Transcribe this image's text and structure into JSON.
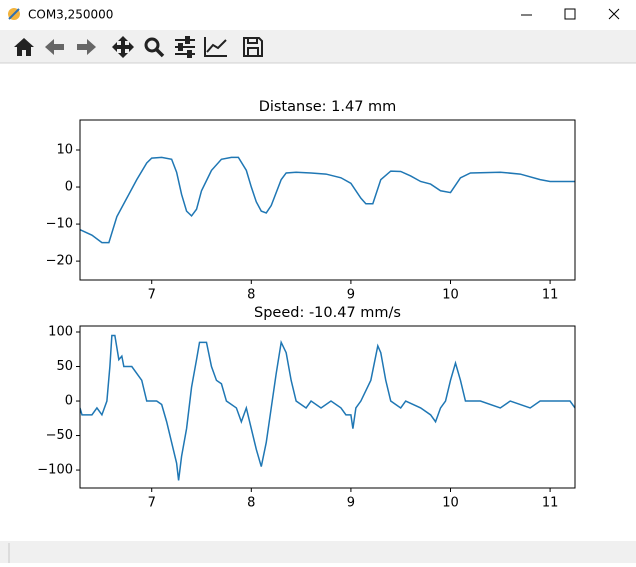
{
  "window": {
    "title": "COM3,250000"
  },
  "chart_data": [
    {
      "type": "line",
      "title": "Distanse: 1.47 mm",
      "color": "#1f77b4",
      "x": [
        6.28,
        6.4,
        6.5,
        6.57,
        6.65,
        6.75,
        6.85,
        6.95,
        7.0,
        7.1,
        7.2,
        7.25,
        7.3,
        7.35,
        7.4,
        7.45,
        7.5,
        7.6,
        7.7,
        7.8,
        7.87,
        7.95,
        8.0,
        8.05,
        8.1,
        8.15,
        8.2,
        8.3,
        8.35,
        8.45,
        8.6,
        8.75,
        8.9,
        9.0,
        9.1,
        9.15,
        9.22,
        9.3,
        9.4,
        9.5,
        9.6,
        9.7,
        9.8,
        9.9,
        10.0,
        10.05,
        10.1,
        10.2,
        10.5,
        10.7,
        10.9,
        11.0,
        11.25
      ],
      "values": [
        -11.5,
        -13,
        -15,
        -15,
        -8,
        -3,
        2,
        6.5,
        7.8,
        8,
        7.5,
        4,
        -2,
        -6.5,
        -7.8,
        -6,
        -1,
        4.5,
        7.5,
        8,
        8,
        4.5,
        0,
        -4,
        -6.5,
        -7,
        -5,
        2,
        3.8,
        4,
        3.8,
        3.5,
        2.5,
        1,
        -3,
        -4.5,
        -4.5,
        2,
        4.3,
        4.2,
        3,
        1.5,
        0.8,
        -1,
        -1.5,
        0.5,
        2.5,
        3.8,
        4,
        3.5,
        2,
        1.5,
        1.5
      ],
      "xlim": [
        6.28,
        11.25
      ],
      "ylim": [
        -25.1,
        18.1
      ],
      "xticks": [
        7,
        8,
        9,
        10,
        11
      ],
      "yticks": [
        {
          "value": -20,
          "label": "−20"
        },
        {
          "value": -10,
          "label": "−10"
        },
        0,
        10
      ]
    },
    {
      "type": "line",
      "title": "Speed: -10.47 mm/s",
      "color": "#1f77b4",
      "x": [
        6.28,
        6.3,
        6.4,
        6.45,
        6.5,
        6.55,
        6.58,
        6.6,
        6.63,
        6.67,
        6.7,
        6.72,
        6.8,
        6.9,
        6.95,
        7.05,
        7.1,
        7.15,
        7.2,
        7.25,
        7.27,
        7.3,
        7.35,
        7.4,
        7.45,
        7.48,
        7.55,
        7.6,
        7.65,
        7.7,
        7.75,
        7.85,
        7.9,
        7.95,
        8.0,
        8.05,
        8.1,
        8.15,
        8.2,
        8.25,
        8.3,
        8.35,
        8.4,
        8.45,
        8.55,
        8.6,
        8.7,
        8.8,
        8.9,
        8.95,
        9.0,
        9.02,
        9.05,
        9.1,
        9.2,
        9.27,
        9.3,
        9.35,
        9.4,
        9.5,
        9.55,
        9.7,
        9.8,
        9.85,
        9.9,
        9.95,
        10.0,
        10.05,
        10.1,
        10.15,
        10.3,
        10.5,
        10.6,
        10.8,
        10.9,
        11.2,
        11.25
      ],
      "values": [
        -10,
        -20,
        -20,
        -10,
        -20,
        0,
        50,
        95,
        95,
        60,
        65,
        50,
        50,
        30,
        0,
        0,
        -5,
        -30,
        -60,
        -90,
        -115,
        -80,
        -40,
        20,
        60,
        85,
        85,
        50,
        30,
        25,
        0,
        -10,
        -30,
        -10,
        -40,
        -70,
        -95,
        -60,
        -10,
        40,
        85,
        70,
        30,
        0,
        -10,
        0,
        -10,
        0,
        -10,
        -20,
        -20,
        -40,
        -10,
        0,
        30,
        80,
        70,
        30,
        0,
        -10,
        0,
        -10,
        -20,
        -30,
        -10,
        0,
        30,
        55,
        30,
        0,
        0,
        -10,
        0,
        -10,
        0,
        0,
        -10
      ],
      "xlim": [
        6.28,
        11.25
      ],
      "ylim": [
        -126,
        108.7
      ],
      "xticks": [
        7,
        8,
        9,
        10,
        11
      ],
      "yticks": [
        {
          "value": -100,
          "label": "−100"
        },
        {
          "value": -50,
          "label": "−50"
        },
        0,
        50,
        100
      ]
    }
  ]
}
